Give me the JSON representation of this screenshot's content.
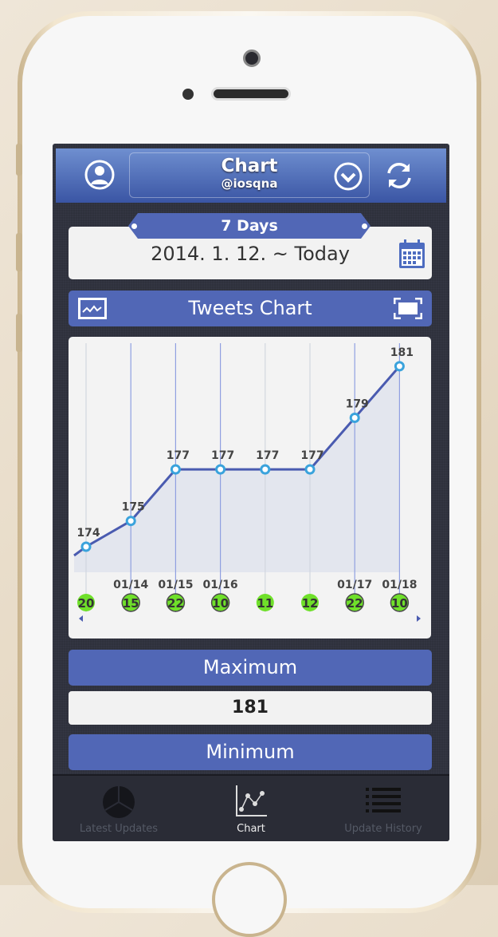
{
  "header": {
    "title": "Chart",
    "subtitle": "@iosqna",
    "left_icon": "user-icon",
    "dropdown_icon": "chevron-down-circle-icon",
    "right_icon": "refresh-icon"
  },
  "range": {
    "tab_label": "7 Days",
    "date_text": "2014. 1. 12. ~ Today",
    "calendar_icon": "calendar-icon"
  },
  "chart_header": {
    "label": "Tweets Chart",
    "left_icon": "chart-window-icon",
    "right_icon": "fullscreen-icon"
  },
  "chart_data": {
    "type": "area",
    "values": [
      174,
      175,
      177,
      177,
      177,
      177,
      179,
      181
    ],
    "value_labels": [
      "174",
      "175",
      "177",
      "177",
      "177",
      "177",
      "179",
      "181"
    ],
    "date_labels": [
      "",
      "01/14",
      "01/15",
      "01/16",
      "",
      "",
      "01/17",
      "01/18"
    ],
    "counts": [
      "20",
      "15",
      "22",
      "10",
      "11",
      "12",
      "22",
      "10"
    ],
    "highlighted": [
      false,
      true,
      true,
      true,
      false,
      false,
      true,
      true
    ],
    "colors": {
      "line": "#4a5bb0",
      "fill": "#e3e6ee",
      "marker": "#3aa3dc",
      "badge": "#6fe02a"
    }
  },
  "stats": {
    "maximum_label": "Maximum",
    "maximum_value": "181",
    "minimum_label": "Minimum"
  },
  "tabbar": {
    "items": [
      {
        "label": "Latest Updates",
        "icon": "pie-chart-icon"
      },
      {
        "label": "Chart",
        "icon": "line-chart-icon"
      },
      {
        "label": "Update History",
        "icon": "list-icon"
      }
    ]
  },
  "colors": {
    "accent": "#5167b6",
    "nav_top": "#6f8fd0",
    "nav_bottom": "#3a55a4"
  }
}
